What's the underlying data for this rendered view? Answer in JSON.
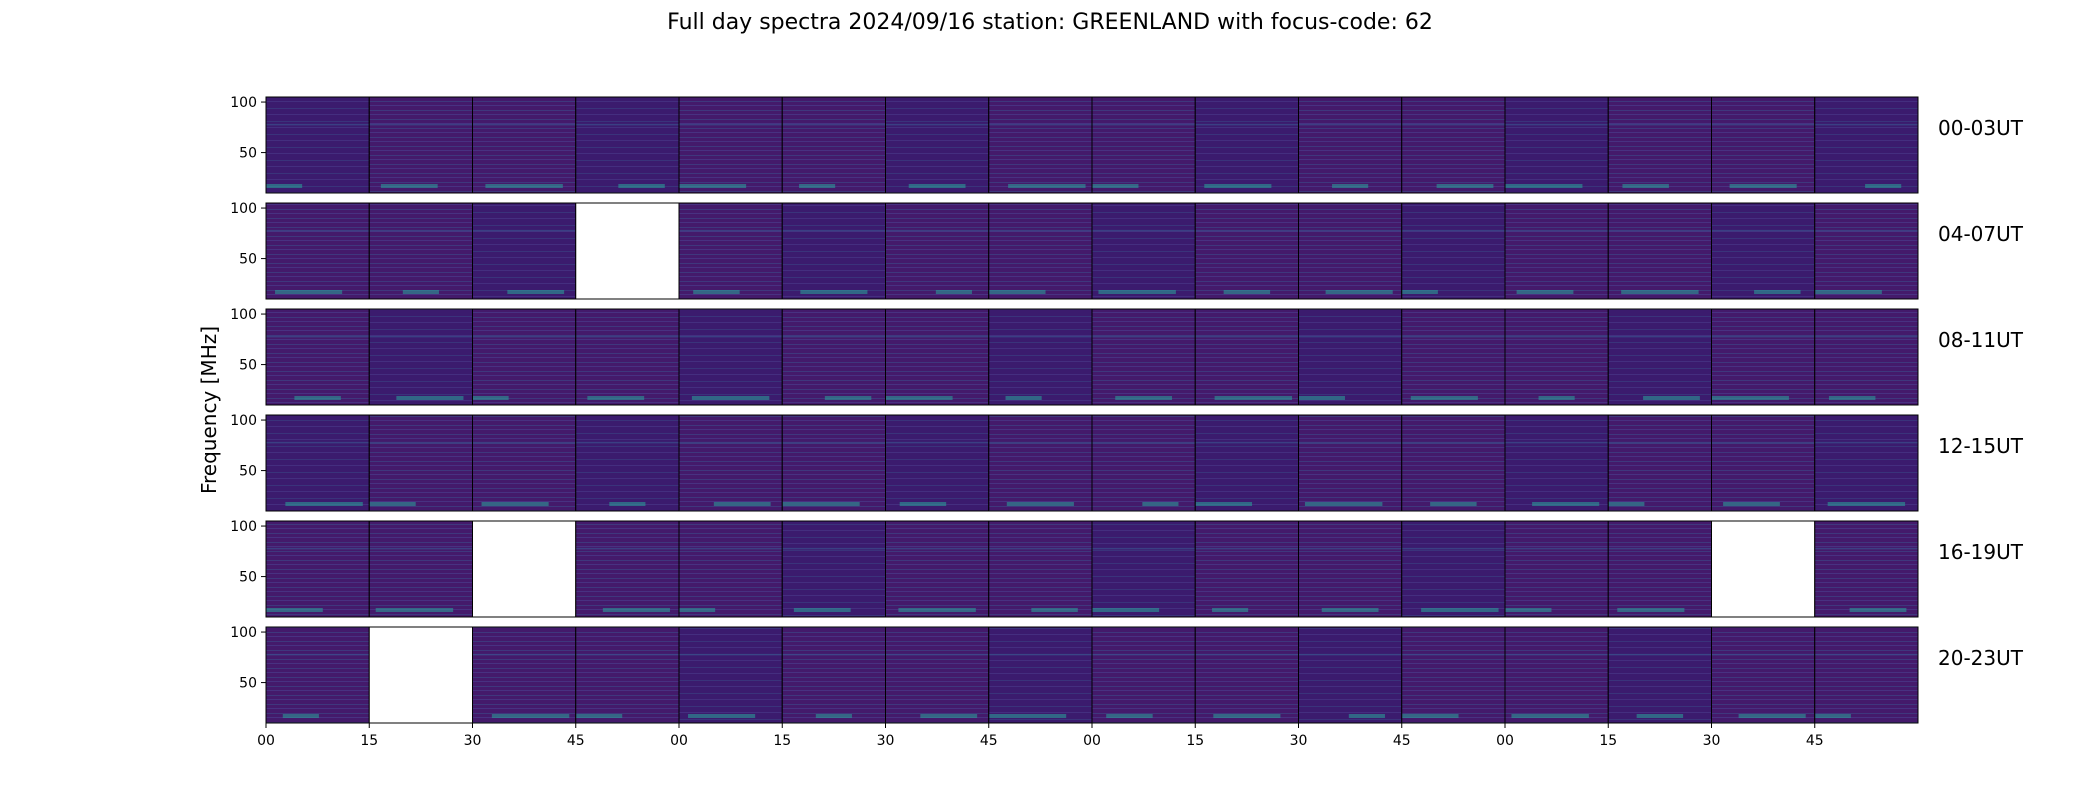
{
  "chart_data": {
    "type": "heatmap",
    "title": "Full day spectra 2024/09/16 station: GREENLAND with focus-code: 62",
    "ylabel": "Frequency [MHz]",
    "ylim": [
      10,
      105
    ],
    "y_ticks": [
      "50",
      "100"
    ],
    "x_tick_labels": [
      "00",
      "15",
      "30",
      "45",
      "00",
      "15",
      "30",
      "45",
      "00",
      "15",
      "30",
      "45",
      "00",
      "15",
      "30",
      "45"
    ],
    "panels_per_row": 16,
    "rows": [
      {
        "label": "00-03UT",
        "missing": []
      },
      {
        "label": "04-07UT",
        "missing": [
          3
        ]
      },
      {
        "label": "08-11UT",
        "missing": []
      },
      {
        "label": "12-15UT",
        "missing": []
      },
      {
        "label": "16-19UT",
        "missing": [
          2,
          14
        ]
      },
      {
        "label": "20-23UT",
        "missing": [
          1
        ]
      }
    ],
    "colors": {
      "background": "#3b1b6e",
      "low": "#441a6b",
      "mid": "#3a4f8c",
      "line": "#4a3a8a",
      "high": "#2aa59a"
    }
  }
}
